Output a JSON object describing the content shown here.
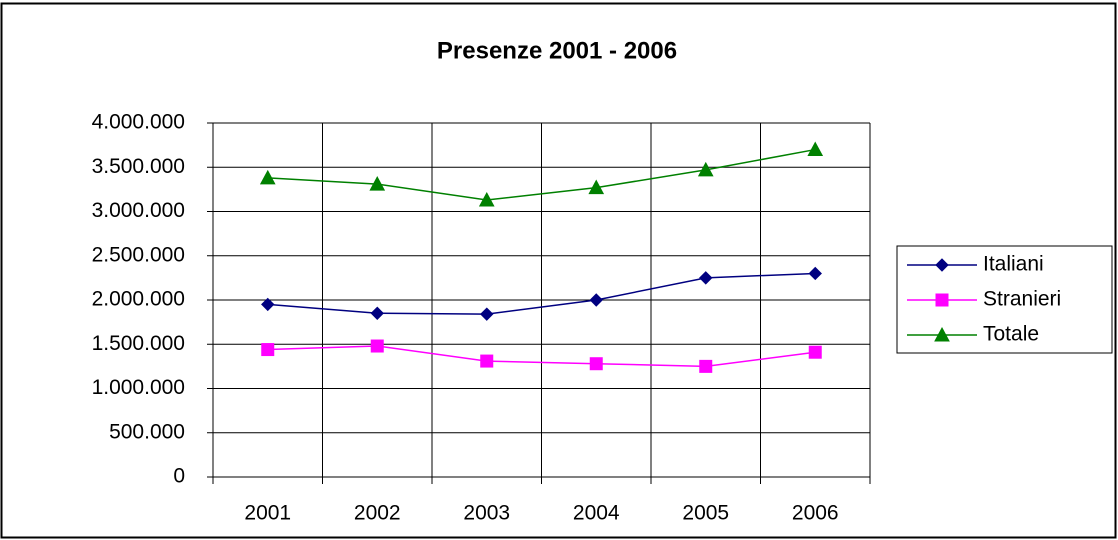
{
  "chart_data": {
    "type": "line",
    "title": "Presenze 2001 - 2006",
    "categories": [
      "2001",
      "2002",
      "2003",
      "2004",
      "2005",
      "2006"
    ],
    "series": [
      {
        "name": "Italiani",
        "color": "#000080",
        "marker": "diamond",
        "values": [
          1950000,
          1850000,
          1840000,
          2000000,
          2250000,
          2300000
        ]
      },
      {
        "name": "Stranieri",
        "color": "#ff00ff",
        "marker": "square",
        "values": [
          1440000,
          1480000,
          1310000,
          1280000,
          1250000,
          1410000
        ]
      },
      {
        "name": "Totale",
        "color": "#008000",
        "marker": "triangle",
        "values": [
          3380000,
          3310000,
          3130000,
          3270000,
          3470000,
          3700000
        ]
      }
    ],
    "ylim": [
      0,
      4000000
    ],
    "yticks": [
      0,
      {
        "value": 500000,
        "label": "500.000"
      },
      {
        "value": 1000000,
        "label": "1.000.000"
      },
      {
        "value": 1500000,
        "label": "1.500.000"
      },
      {
        "value": 2000000,
        "label": "2.000.000"
      },
      {
        "value": 2500000,
        "label": "2.500.000"
      },
      {
        "value": 3000000,
        "label": "3.000.000"
      },
      {
        "value": 3500000,
        "label": "3.500.000"
      },
      {
        "value": 4000000,
        "label": "4.000.000"
      }
    ],
    "grid": true,
    "legend": "right"
  }
}
